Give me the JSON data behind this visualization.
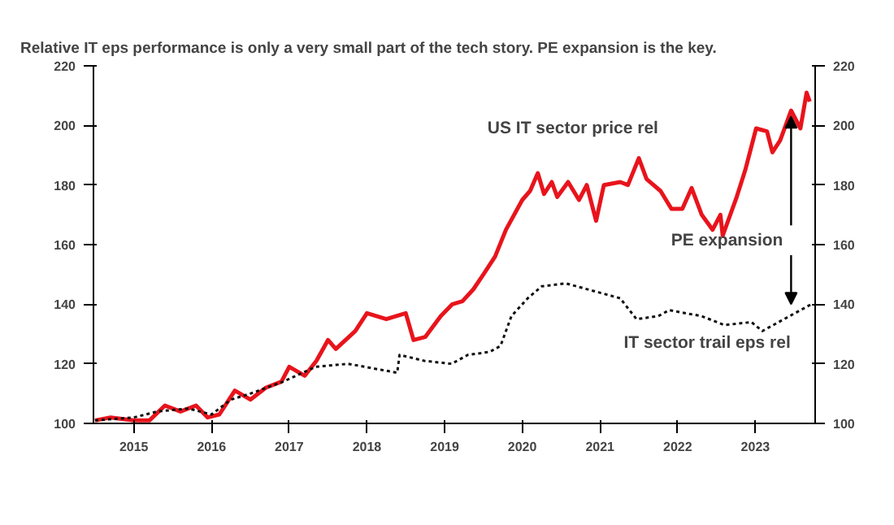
{
  "chart_data": {
    "type": "line",
    "title": "Relative IT eps performance is only a very small part of the tech story. PE expansion is the key.",
    "xlim": [
      2014.98,
      2024.27
    ],
    "xticks": [
      {
        "value": 2015.5,
        "label": "2015"
      },
      {
        "value": 2016.5,
        "label": "2016"
      },
      {
        "value": 2017.5,
        "label": "2017"
      },
      {
        "value": 2018.5,
        "label": "2018"
      },
      {
        "value": 2019.5,
        "label": "2019"
      },
      {
        "value": 2020.5,
        "label": "2020"
      },
      {
        "value": 2021.5,
        "label": "2021"
      },
      {
        "value": 2022.5,
        "label": "2022"
      },
      {
        "value": 2023.5,
        "label": "2023"
      }
    ],
    "ylim": [
      100,
      220
    ],
    "yticks": [
      100,
      120,
      140,
      160,
      180,
      200,
      220
    ],
    "y2lim": [
      100,
      220
    ],
    "y2ticks": [
      100,
      120,
      140,
      160,
      180,
      200,
      220
    ],
    "grid": false,
    "series": [
      {
        "color": "#e8141c",
        "line_style": "solid",
        "x": [
          2015.0,
          2015.2,
          2015.5,
          2015.7,
          2015.9,
          2016.1,
          2016.3,
          2016.45,
          2016.6,
          2016.8,
          2017.0,
          2017.2,
          2017.4,
          2017.5,
          2017.7,
          2017.85,
          2018.0,
          2018.1,
          2018.35,
          2018.5,
          2018.75,
          2019.0,
          2019.1,
          2019.25,
          2019.45,
          2019.6,
          2019.73,
          2019.87,
          2020.0,
          2020.15,
          2020.29,
          2020.5,
          2020.6,
          2020.7,
          2020.78,
          2020.88,
          2020.95,
          2021.09,
          2021.23,
          2021.33,
          2021.45,
          2021.55,
          2021.76,
          2021.86,
          2022.0,
          2022.1,
          2022.28,
          2022.42,
          2022.56,
          2022.68,
          2022.81,
          2022.95,
          2023.05,
          2023.08,
          2023.26,
          2023.37,
          2023.51,
          2023.65,
          2023.72,
          2023.82,
          2023.96,
          2024.08,
          2024.16,
          2024.2
        ],
        "values": [
          101,
          102,
          101,
          101,
          106,
          104,
          106,
          102,
          103,
          111,
          108,
          112,
          114,
          119,
          116,
          121,
          128,
          125,
          131,
          137,
          135,
          137,
          128,
          129,
          136,
          140,
          141,
          145,
          150,
          156,
          165,
          175,
          178,
          184,
          177,
          181,
          176,
          181,
          175,
          180,
          168,
          180,
          181,
          180,
          189,
          182,
          178,
          172,
          172,
          179,
          170,
          165,
          170,
          163,
          176,
          185,
          199,
          198,
          191,
          195,
          205,
          199,
          211,
          208
        ]
      },
      {
        "color": "#111111",
        "line_style": "dotted",
        "x": [
          2015.0,
          2015.5,
          2015.8,
          2016.2,
          2016.5,
          2016.75,
          2017.0,
          2017.42,
          2017.84,
          2018.26,
          2018.68,
          2018.89,
          2018.92,
          2019.24,
          2019.59,
          2019.8,
          2020.08,
          2020.22,
          2020.36,
          2020.57,
          2020.75,
          2021.06,
          2021.48,
          2021.76,
          2021.97,
          2022.25,
          2022.39,
          2022.81,
          2023.1,
          2023.45,
          2023.59,
          2023.8,
          2024.08,
          2024.22
        ],
        "values": [
          101,
          102,
          104,
          105,
          103,
          108,
          110,
          114,
          119,
          120,
          118,
          117,
          123,
          121,
          120,
          123,
          124,
          126,
          136,
          142,
          146,
          147,
          144,
          142,
          135,
          136,
          138,
          136,
          133,
          134,
          131,
          134,
          138,
          140
        ]
      }
    ],
    "annotations": [
      "US IT sector price rel",
      "IT sector trail eps rel",
      {
        "text": "PE expansion",
        "x": 2023.96,
        "y": 205
      }
    ]
  }
}
